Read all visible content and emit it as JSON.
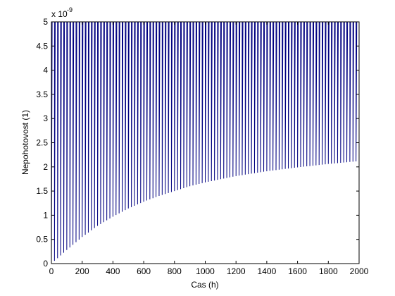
{
  "chart_data": {
    "type": "line",
    "title": "",
    "xlabel": "Cas (h)",
    "ylabel": "Nepohotovost (1)",
    "y_multiplier_label": "x 10",
    "y_multiplier_exponent": "-9",
    "xlim": [
      0,
      2000
    ],
    "ylim": [
      0,
      5
    ],
    "x_ticks": [
      0,
      200,
      400,
      600,
      800,
      1000,
      1200,
      1400,
      1600,
      1800,
      2000
    ],
    "y_ticks": [
      0,
      0.5,
      1,
      1.5,
      2,
      2.5,
      3,
      3.5,
      4,
      4.5,
      5
    ],
    "x_tick_labels": [
      "0",
      "200",
      "400",
      "600",
      "800",
      "1000",
      "1200",
      "1400",
      "1600",
      "1800",
      "2000"
    ],
    "y_tick_labels": [
      "0",
      "0.5",
      "1",
      "1.5",
      "2",
      "2.5",
      "3",
      "3.5",
      "4",
      "4.5",
      "5"
    ],
    "grid": false,
    "legend": "none",
    "series": [
      {
        "description": "sawtooth: rises to 5 and drops to a lower envelope at each period",
        "period_h": 20,
        "peak": 5,
        "lower_envelope": {
          "x": [
            0,
            100,
            200,
            300,
            400,
            500,
            600,
            700,
            800,
            900,
            1000,
            1200,
            1400,
            1600,
            1800,
            2000
          ],
          "y": [
            0,
            0.28,
            0.55,
            0.78,
            0.97,
            1.14,
            1.28,
            1.4,
            1.5,
            1.6,
            1.68,
            1.81,
            1.91,
            1.99,
            2.06,
            2.12
          ]
        },
        "color": "#000080"
      }
    ]
  }
}
